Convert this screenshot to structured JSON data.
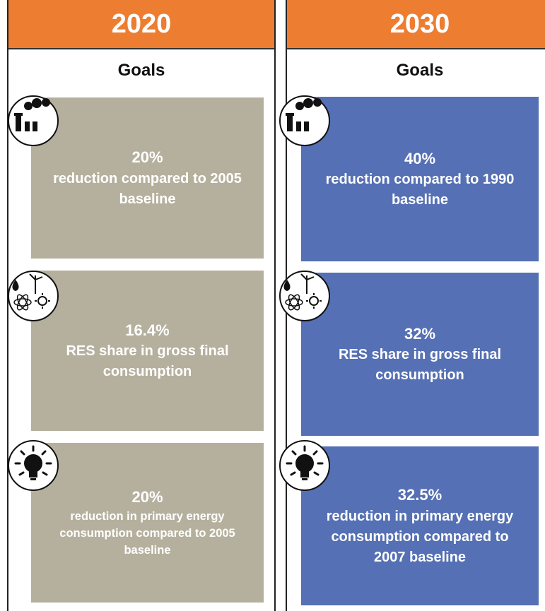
{
  "columns": [
    {
      "year": "2020",
      "goals_label": "Goals",
      "goals": [
        {
          "percent": "20%",
          "text": "reduction compared to 2005 baseline"
        },
        {
          "percent": "16.4%",
          "text": "RES share in gross final consumption"
        },
        {
          "percent": "20%",
          "text": "reduction in primary energy consumption compared to 2005 baseline"
        }
      ]
    },
    {
      "year": "2030",
      "goals_label": "Goals",
      "goals": [
        {
          "percent": "40%",
          "text": "reduction compared to 1990 baseline"
        },
        {
          "percent": "32%",
          "text": "RES share in gross final consumption"
        },
        {
          "percent": "32.5%",
          "text": "reduction in primary energy consumption compared to 2007 baseline"
        }
      ]
    }
  ]
}
